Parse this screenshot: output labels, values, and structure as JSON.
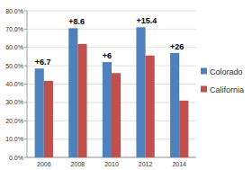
{
  "chart_data": {
    "type": "bar",
    "categories": [
      "2006",
      "2008",
      "2010",
      "2012",
      "2014"
    ],
    "series": [
      {
        "name": "Colorado",
        "color": "#4f81bd",
        "values": [
          48.5,
          70.5,
          52,
          71,
          57
        ]
      },
      {
        "name": "California",
        "color": "#c0504d",
        "values": [
          41.8,
          61.9,
          46,
          55.6,
          31
        ]
      }
    ],
    "annotations": [
      "+6.7",
      "+8.6",
      "+6",
      "+15.4",
      "+26"
    ],
    "ylim": [
      0,
      80
    ],
    "yticks": [
      {
        "value": 0,
        "label": "0.0%"
      },
      {
        "value": 10,
        "label": "10.0%"
      },
      {
        "value": 20,
        "label": "20.0%"
      },
      {
        "value": 30,
        "label": "30.0%"
      },
      {
        "value": 40,
        "label": "40.0%"
      },
      {
        "value": 50,
        "label": "50.0%"
      },
      {
        "value": 60,
        "label": "60.0%"
      },
      {
        "value": 70,
        "label": "70.0%"
      },
      {
        "value": 80,
        "label": "80.0%"
      }
    ],
    "grid": true,
    "legend": "right"
  }
}
